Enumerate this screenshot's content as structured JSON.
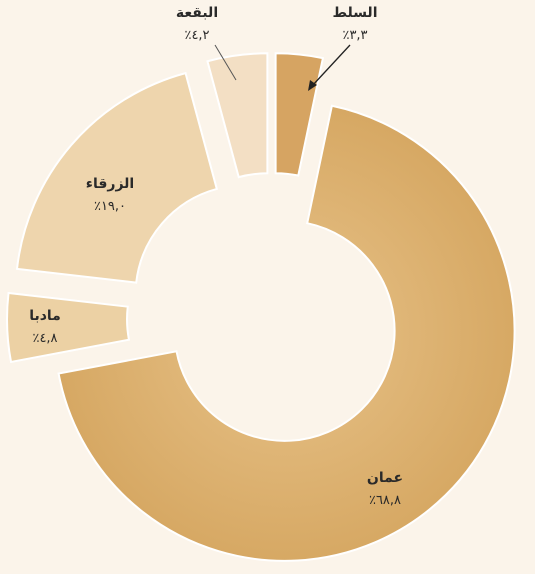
{
  "chart_data": {
    "type": "donut",
    "categories": [
      "السلط",
      "عمان",
      "مادبا",
      "الزرقاء",
      "البقعة"
    ],
    "values": [
      3.3,
      68.8,
      4.8,
      19.0,
      4.2
    ],
    "value_labels": [
      "٪٣,٣",
      "٪٦٨,٨",
      "٪٤,٨",
      "٪١٩,٠",
      "٪٤,٢"
    ],
    "colors": [
      "#d6a462",
      "#d9ae68",
      "#ecd1a4",
      "#eed5ad",
      "#f3dfc4"
    ]
  }
}
